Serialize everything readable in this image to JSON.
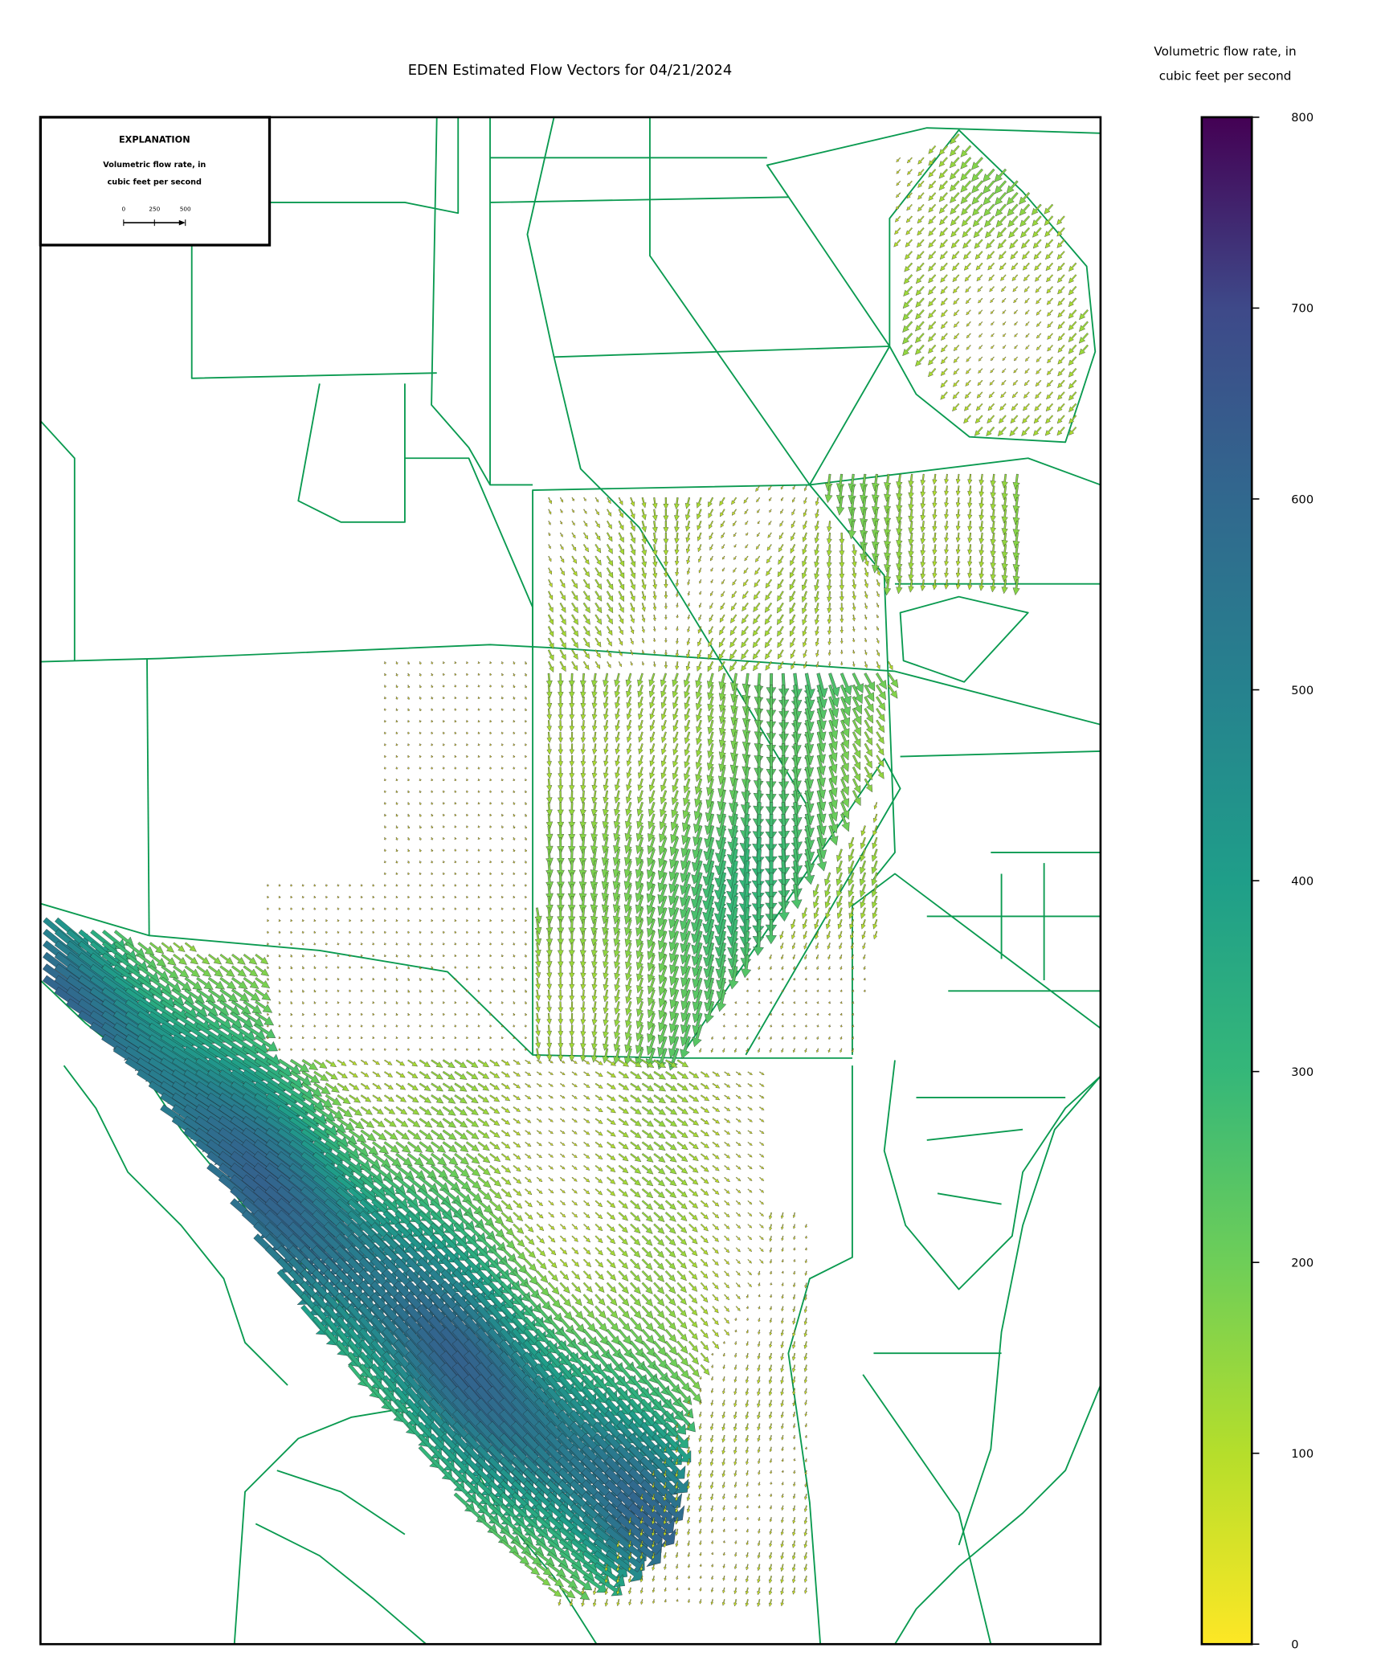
{
  "title": "EDEN Estimated Flow Vectors for 04/21/2024",
  "colorbar": {
    "label": [
      "Volumetric flow rate, in",
      "cubic feet per second"
    ],
    "lim": [
      0,
      800
    ],
    "ticks": [
      0,
      100,
      200,
      300,
      400,
      500,
      600,
      700,
      800
    ]
  },
  "explanation": {
    "title": "EXPLANATION",
    "label": [
      "Volumetric flow rate, in",
      "cubic feet per second"
    ],
    "scale_ticks": [
      0,
      250,
      500
    ]
  }
}
